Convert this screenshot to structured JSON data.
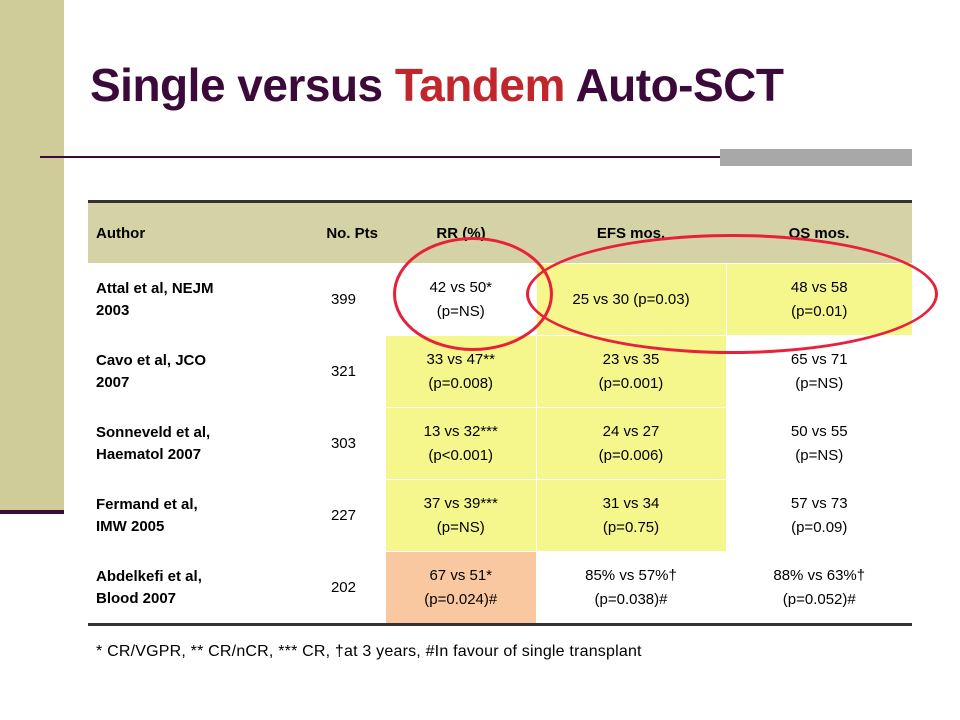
{
  "title": {
    "part1": "Single versus ",
    "part2": "Tandem",
    "part3": " Auto-SCT"
  },
  "colors": {
    "title": "#3b0a3a",
    "accent": "#c0262c",
    "header_bg": "#d5d3a6",
    "cell_yellow": "#f5f78c",
    "cell_orange": "#fac8a0",
    "circle": "#e8203a"
  },
  "table": {
    "headers": [
      "Author",
      "No. Pts",
      "RR (%)",
      "EFS mos.",
      "OS mos."
    ],
    "rows": [
      {
        "author": [
          "Attal et al, NEJM",
          "2003"
        ],
        "pts": "399",
        "rr": [
          "42 vs 50*",
          "(p=NS)"
        ],
        "efs": [
          "25 vs 30 (p=0.03)"
        ],
        "os": [
          "48 vs 58",
          "(p=0.01)"
        ]
      },
      {
        "author": [
          "Cavo et al, JCO",
          "2007"
        ],
        "pts": "321",
        "rr": [
          "33 vs 47**",
          "(p=0.008)"
        ],
        "efs": [
          "23 vs 35",
          "(p=0.001)"
        ],
        "os": [
          "65 vs 71",
          "(p=NS)"
        ]
      },
      {
        "author": [
          "Sonneveld et al,",
          "Haematol 2007"
        ],
        "pts": "303",
        "rr": [
          "13 vs 32***",
          "(p<0.001)"
        ],
        "efs": [
          "24 vs 27",
          "(p=0.006)"
        ],
        "os": [
          "50 vs 55",
          "(p=NS)"
        ]
      },
      {
        "author": [
          "Fermand et al,",
          "IMW 2005"
        ],
        "pts": "227",
        "rr": [
          "37 vs 39***",
          "(p=NS)"
        ],
        "efs": [
          "31 vs 34",
          "(p=0.75)"
        ],
        "os": [
          "57 vs 73",
          "(p=0.09)"
        ]
      },
      {
        "author": [
          "Abdelkefi et al,",
          "Blood 2007"
        ],
        "pts": "202",
        "rr": [
          "67 vs 51*",
          "(p=0.024)#"
        ],
        "efs": [
          "85% vs 57%†",
          "(p=0.038)#"
        ],
        "os": [
          "88% vs 63%†",
          "(p=0.052)#"
        ]
      }
    ]
  },
  "footnote": "* CR/VGPR, ** CR/nCR, *** CR, †at 3 years, #In favour of single transplant"
}
